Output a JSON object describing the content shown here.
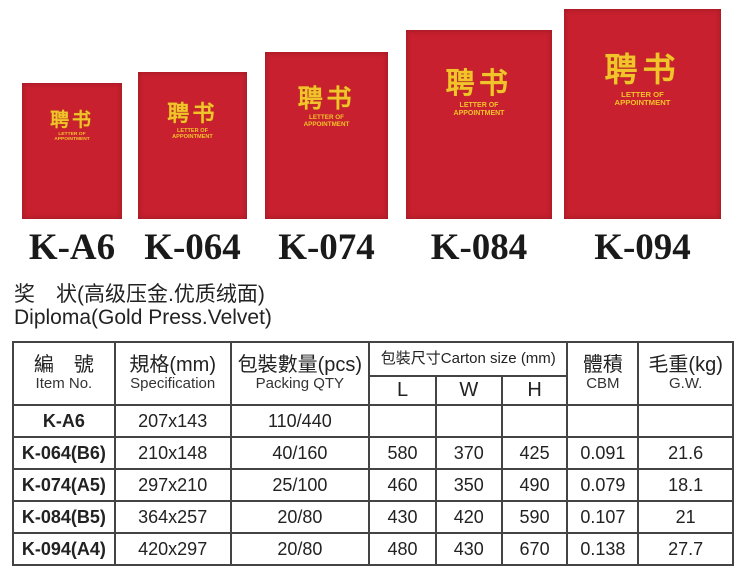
{
  "cover": {
    "title_cn": "聘书",
    "title_en_1": "LETTER OF",
    "title_en_2": "APPOINTMENT",
    "color": "#c8202e",
    "text_color": "#f2c32a"
  },
  "models": [
    "K-A6",
    "K-064",
    "K-074",
    "K-084",
    "K-094"
  ],
  "heading": {
    "cn": "奖　状(高级压金.优质绒面)",
    "en": "Diploma(Gold Press.Velvet)"
  },
  "table": {
    "headers": {
      "item": {
        "cn": "編　號",
        "en": "Item No."
      },
      "spec": {
        "cn": "規格(mm)",
        "en": "Specification"
      },
      "packing": {
        "cn": "包裝數量(pcs)",
        "en": "Packing QTY"
      },
      "carton": {
        "cn": "包裝尺寸Carton size (mm)",
        "L": "L",
        "W": "W",
        "H": "H"
      },
      "cbm": {
        "cn": "體積",
        "en": "CBM"
      },
      "gw": {
        "cn": "毛重(kg)",
        "en": "G.W."
      }
    },
    "rows": [
      {
        "item": "K-A6",
        "spec": "207x143",
        "qty": "110/440",
        "L": "",
        "W": "",
        "H": "",
        "cbm": "",
        "gw": ""
      },
      {
        "item": "K-064(B6)",
        "spec": "210x148",
        "qty": "40/160",
        "L": "580",
        "W": "370",
        "H": "425",
        "cbm": "0.091",
        "gw": "21.6"
      },
      {
        "item": "K-074(A5)",
        "spec": "297x210",
        "qty": "25/100",
        "L": "460",
        "W": "350",
        "H": "490",
        "cbm": "0.079",
        "gw": "18.1"
      },
      {
        "item": "K-084(B5)",
        "spec": "364x257",
        "qty": "20/80",
        "L": "430",
        "W": "420",
        "H": "590",
        "cbm": "0.107",
        "gw": "21"
      },
      {
        "item": "K-094(A4)",
        "spec": "420x297",
        "qty": "20/80",
        "L": "480",
        "W": "430",
        "H": "670",
        "cbm": "0.138",
        "gw": "27.7"
      }
    ]
  }
}
